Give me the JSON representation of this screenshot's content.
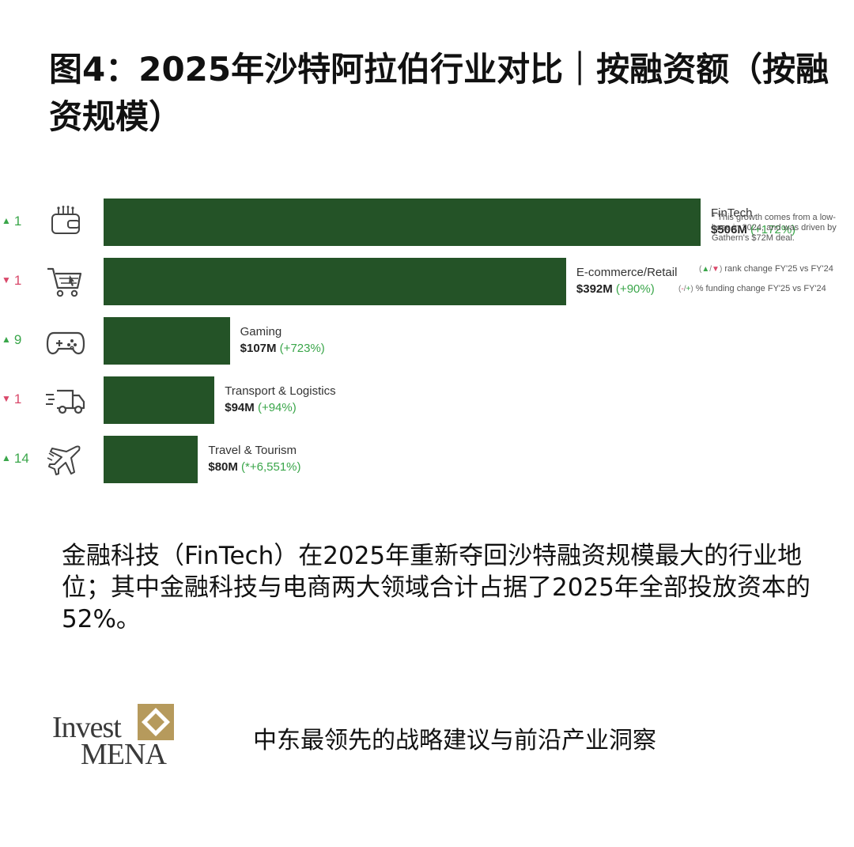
{
  "title": "图4：2025年沙特阿拉伯行业对比｜按融资额（按融资规模）",
  "chart_data": {
    "type": "bar",
    "orientation": "horizontal",
    "unit": "$M",
    "series": [
      {
        "values": [
          506,
          392,
          107,
          94,
          80
        ]
      }
    ],
    "categories": [
      "FinTech",
      "E-commerce/Retail",
      "Gaming",
      "Transport & Logistics",
      "Travel & Tourism"
    ],
    "rows": [
      {
        "category": "FinTech",
        "value": 506,
        "value_label": "$506M",
        "pct_label": "(+172%)",
        "rank_dir": "up",
        "rank_change": "1",
        "icon": "wallet-icon"
      },
      {
        "category": "E-commerce/Retail",
        "value": 392,
        "value_label": "$392M",
        "pct_label": "(+90%)",
        "rank_dir": "down",
        "rank_change": "1",
        "icon": "shopping-cart-icon"
      },
      {
        "category": "Gaming",
        "value": 107,
        "value_label": "$107M",
        "pct_label": "(+723%)",
        "rank_dir": "up",
        "rank_change": "9",
        "icon": "gamepad-icon"
      },
      {
        "category": "Transport & Logistics",
        "value": 94,
        "value_label": "$94M",
        "pct_label": "(+94%)",
        "rank_dir": "down",
        "rank_change": "1",
        "icon": "delivery-truck-icon"
      },
      {
        "category": "Travel & Tourism",
        "value": 80,
        "value_label": "$80M",
        "pct_label": "(*+6,551%)",
        "rank_dir": "up",
        "rank_change": "14",
        "icon": "airplane-icon"
      }
    ],
    "xlim": [
      0,
      506
    ],
    "grid": false,
    "note": "* This growth comes from a low-base in 2024, and was driven by Gathern's $72M deal.",
    "legend": [
      {
        "symbol": "(▲/▼)",
        "text": "rank change FY'25 vs FY'24"
      },
      {
        "symbol": "(-/+)",
        "text": "% funding change FY'25 vs FY'24"
      }
    ],
    "legend_position": "bottom-right"
  },
  "colors": {
    "bar": "#245327",
    "up": "#3aa64a",
    "down": "#d9486a",
    "pct": "#3aa64a",
    "logo_gold": "#b69a5c"
  },
  "body_text": "金融科技（FinTech）在2025年重新夺回沙特融资规模最大的行业地位；其中金融科技与电商两大领域合计占据了2025年全部投放资本的52%。",
  "logo": {
    "line1": "Invest",
    "line2": "MENA"
  },
  "tagline": "中东最领先的战略建议与前沿产业洞察"
}
